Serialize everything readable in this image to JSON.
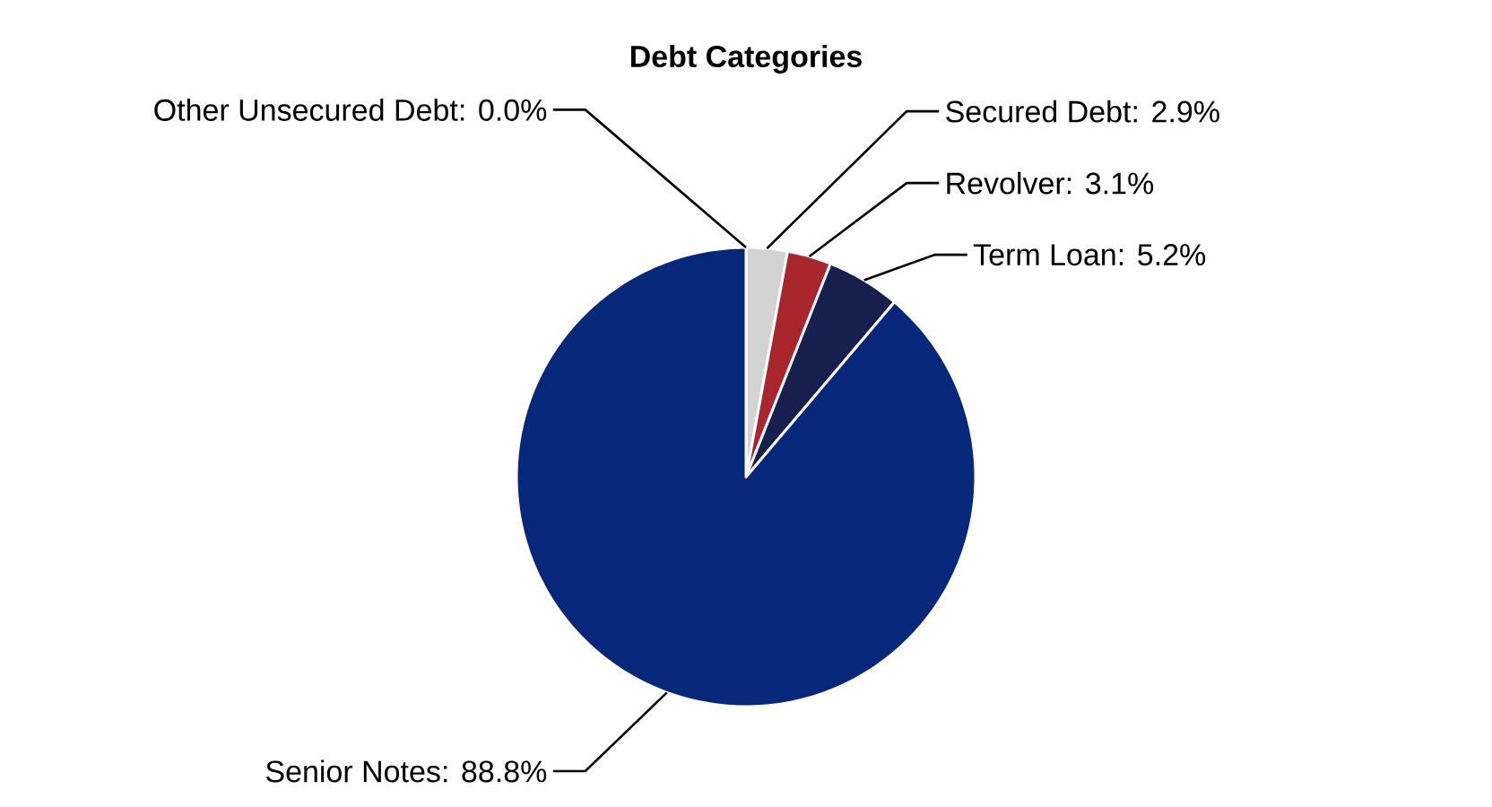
{
  "chart_data": {
    "type": "pie",
    "title": "Debt Categories",
    "categories": [
      "Other Unsecured Debt",
      "Secured Debt",
      "Revolver",
      "Term Loan",
      "Senior Notes"
    ],
    "values": [
      0.0,
      2.9,
      3.1,
      5.2,
      88.8
    ],
    "value_labels": [
      ": 0.0%",
      ": 2.9%",
      ": 3.1%",
      ": 5.2%",
      ": 88.8%"
    ],
    "colors": [
      "#8c8c8c",
      "#d3d3d3",
      "#a8262c",
      "#161f4e",
      "#06277a"
    ]
  }
}
